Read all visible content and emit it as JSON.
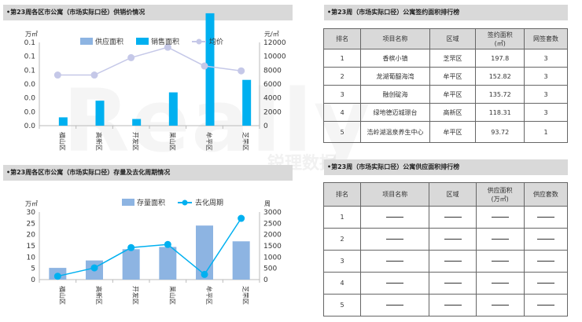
{
  "watermark": {
    "text": "Really",
    "sub": "锐理数据"
  },
  "sections": {
    "s1": "•第23周各区市公寓（市场实际口径）供销价情况",
    "s2": "•第23周各区市公寓（市场实际口径）存量及去化周期情况",
    "s3": "•第23周（市场实际口径）公寓签约面积排行榜",
    "s4": "•第23周（市场实际口径）公寓供应面积排行榜"
  },
  "chart_data": [
    {
      "type": "bar",
      "categories": [
        "福山区",
        "高新区",
        "开发区",
        "莱山区",
        "牟平区",
        "芝罘区"
      ],
      "series": [
        {
          "name": "供应面积",
          "values": [
            0,
            0,
            0,
            0,
            0,
            0
          ],
          "color": "#8db4e2"
        },
        {
          "name": "销售面积",
          "values": [
            0.01,
            0.03,
            0.008,
            0.04,
            0.135,
            0.055
          ],
          "color": "#00b0f0"
        },
        {
          "name": "均价",
          "values": [
            7300,
            7300,
            9800,
            11300,
            8600,
            7900
          ],
          "color": "#c5c8e8"
        }
      ],
      "ylabel_left": "万㎡",
      "ylabel_right": "元/㎡",
      "ylim_left": [
        0,
        0.1
      ],
      "ylim_right": [
        0,
        12000
      ],
      "yticks_left": [
        "0.0",
        "0.0",
        "0.0",
        "0.0",
        "0.1",
        "0.1",
        "0.1"
      ],
      "yticks_right": [
        "0",
        "2000",
        "4000",
        "6000",
        "8000",
        "10000",
        "12000"
      ]
    },
    {
      "type": "bar",
      "categories": [
        "福山区",
        "高新区",
        "开发区",
        "莱山区",
        "牟平区",
        "芝罘区"
      ],
      "series": [
        {
          "name": "存量面积",
          "values": [
            5.2,
            8.5,
            13.5,
            14.5,
            24,
            17
          ],
          "color": "#8db4e2"
        },
        {
          "name": "去化周期",
          "values": [
            150,
            520,
            1420,
            1560,
            230,
            2720
          ],
          "color": "#00b0f0"
        }
      ],
      "ylabel_left": "万㎡",
      "ylabel_right": "周",
      "ylim_left": [
        0,
        30
      ],
      "ylim_right": [
        0,
        3000
      ],
      "yticks_left": [
        "0",
        "5",
        "10",
        "15",
        "20",
        "25",
        "30"
      ],
      "yticks_right": [
        "0",
        "500",
        "1000",
        "1500",
        "2000",
        "2500",
        "3000"
      ]
    }
  ],
  "table_sign": {
    "headers": [
      "排名",
      "项目名称",
      "区域",
      "签约面积\n(㎡)",
      "网签套数"
    ],
    "rows": [
      [
        "1",
        "香槟小镇",
        "芝罘区",
        "197.8",
        "3"
      ],
      [
        "2",
        "龙湖葡醍海湾",
        "牟平区",
        "152.82",
        "3"
      ],
      [
        "3",
        "融创碇海",
        "牟平区",
        "135.72",
        "3"
      ],
      [
        "4",
        "绿地德迈城璟台",
        "高新区",
        "118.31",
        "3"
      ],
      [
        "5",
        "浩岭湖温泉养生中心",
        "牟平区",
        "93.72",
        "1"
      ]
    ]
  },
  "table_supply": {
    "headers": [
      "排名",
      "项目名称",
      "区域",
      "供应面积\n(万㎡)",
      "供应套数"
    ],
    "rows": [
      [
        "1"
      ],
      [
        "2"
      ],
      [
        "3"
      ],
      [
        "4"
      ],
      [
        "5"
      ]
    ]
  }
}
